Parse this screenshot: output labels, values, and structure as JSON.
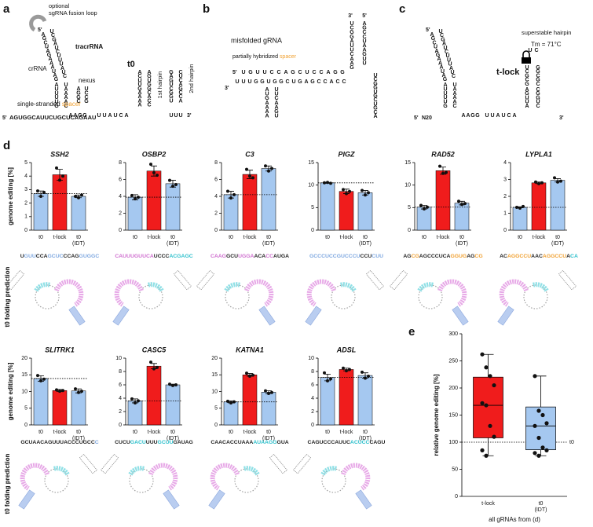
{
  "figure": {
    "a": {
      "letter": "a",
      "fusion_1": "optional",
      "fusion_2": "sgRNA fusion loop",
      "five": "5'",
      "tracr": "tracrRNA",
      "crrna": "crRNA",
      "t0": "t0",
      "nexus": "nexus",
      "hairpin1": "1st hairpin",
      "hairpin2": "2nd hairpin",
      "ss": "single-stranded ",
      "spacer": "spacer",
      "spacer_five": "5'",
      "spacer_seq": "AGUGGCAUUCUGCUCAGAAU",
      "three": "3'",
      "diag_l": "AGCUAGAAAUAG",
      "diag_r": "UCGAUCUUUAUC",
      "stem_l": "AUUUUG",
      "stem_r": "UAAAAC",
      "nexus_l": "AGGC",
      "nexus_r": "UCCG",
      "nexus_b": "AAGG",
      "linker": "UUAUCA",
      "hp1_l": "ACUUGAAAA",
      "hp1_r": "AGUGGCACC",
      "hp2_l": "GAGUCGGU",
      "hp2_r": "CUCAGCCA",
      "tail": "UUU"
    },
    "b": {
      "letter": "b",
      "title": "misfolded gRNA",
      "partial": "partially hybridized ",
      "spacer": "spacer",
      "three_top": "3'",
      "five_top": "5'",
      "stem_l": "UCGGAUUCAAG",
      "stem_r": "AGCCUAAGUU",
      "five": "5'",
      "top_strand": "UGUUCCAGCUCCAGG",
      "bottom_strand": "UUUGGUGGCUGAGCCACC",
      "three": "3'",
      "hp_pink_l": "AUGAAAA",
      "hp_pink_r": "UUCAAGU",
      "blue_hp": "UCGGUGCUGCA"
    },
    "c": {
      "letter": "c",
      "five_top": "5'",
      "diag_l": "AGCUAGAAAUAG",
      "diag_r": "UCGAUCUUUAUC",
      "stem_l": "AUUUUG",
      "stem_r": "UAAAAC",
      "label": "superstable hairpin",
      "tm": "Tm = 71°C",
      "name": "t-lock",
      "red_top": "UC",
      "red_l": "UCGCG",
      "red_r": "GGCGC",
      "pink_l": "AGUUA",
      "blue_r": "CGGUC",
      "nexus_b": "AAGG",
      "linker": "UUAUCA",
      "n20": "N20",
      "five": "5'",
      "three": "3'"
    },
    "d": {
      "letter": "d",
      "fold_row1": "t0 folding prediction",
      "fold_row2": "t0 folding prediction"
    },
    "e": {
      "letter": "e"
    }
  },
  "chart_data": [
    {
      "type": "bar",
      "title": "SSH2",
      "ylabel": "genome editing [%]",
      "categories": [
        "t0",
        "t-lock",
        "t0 (IDT)"
      ],
      "values": [
        2.7,
        4.1,
        2.5
      ],
      "errors": [
        0.2,
        0.4,
        0.1
      ],
      "points": [
        [
          2.9,
          2.5,
          2.8
        ],
        [
          4.6,
          3.7,
          4.0
        ],
        [
          2.5,
          2.4,
          2.6
        ]
      ],
      "colors": [
        "#a5c8f0",
        "#f01c1c",
        "#a5c8f0"
      ],
      "ylim": [
        0,
        5
      ],
      "yticks": [
        0,
        1,
        2,
        3,
        4,
        5
      ],
      "sequence": [
        {
          "text": "U",
          "color": "#222222"
        },
        {
          "text": "GUU",
          "color": "#7fa8e0"
        },
        {
          "text": "CCA",
          "color": "#222222"
        },
        {
          "text": "GCUC",
          "color": "#7fa8e0"
        },
        {
          "text": "CCAG",
          "color": "#222222"
        },
        {
          "text": "GUGGC",
          "color": "#7fa8e0"
        }
      ]
    },
    {
      "type": "bar",
      "title": "OSBP2",
      "categories": [
        "t0",
        "t-lock",
        "t0 (IDT)"
      ],
      "values": [
        3.9,
        7.0,
        5.5
      ],
      "errors": [
        0.3,
        0.6,
        0.4
      ],
      "points": [
        [
          4.1,
          3.7,
          3.9
        ],
        [
          7.8,
          6.8,
          6.5
        ],
        [
          5.9,
          5.2,
          5.4
        ]
      ],
      "colors": [
        "#a5c8f0",
        "#f01c1c",
        "#a5c8f0"
      ],
      "ylim": [
        0,
        8
      ],
      "yticks": [
        0,
        2,
        4,
        6,
        8
      ],
      "sequence": [
        {
          "text": "CAUUUGUUCA",
          "color": "#cf6fcf"
        },
        {
          "text": "UCCC",
          "color": "#222222"
        },
        {
          "text": "ACGAGC",
          "color": "#2ec0cc"
        }
      ]
    },
    {
      "type": "bar",
      "title": "C3",
      "categories": [
        "t0",
        "t-lock",
        "t0 (IDT)"
      ],
      "values": [
        4.2,
        6.6,
        7.3
      ],
      "errors": [
        0.4,
        0.5,
        0.3
      ],
      "points": [
        [
          4.6,
          3.8,
          4.2
        ],
        [
          7.2,
          6.4,
          6.2
        ],
        [
          7.6,
          7.0,
          7.3
        ]
      ],
      "colors": [
        "#a5c8f0",
        "#f01c1c",
        "#a5c8f0"
      ],
      "ylim": [
        0,
        8
      ],
      "yticks": [
        0,
        2,
        4,
        6,
        8
      ],
      "sequence": [
        {
          "text": "CAAG",
          "color": "#cf6fcf"
        },
        {
          "text": "GCU",
          "color": "#222222"
        },
        {
          "text": "UGGA",
          "color": "#cf6fcf"
        },
        {
          "text": "ACA",
          "color": "#222222"
        },
        {
          "text": "CC",
          "color": "#cf6fcf"
        },
        {
          "text": "AUGA",
          "color": "#222222"
        }
      ]
    },
    {
      "type": "bar",
      "title": "PIGZ",
      "categories": [
        "t0",
        "t-lock",
        "t0 (IDT)"
      ],
      "values": [
        10.5,
        8.6,
        8.3
      ],
      "errors": [
        0.1,
        0.5,
        0.5
      ],
      "points": [
        [
          10.5,
          10.6,
          10.4
        ],
        [
          9.0,
          8.1,
          8.6
        ],
        [
          8.8,
          7.8,
          8.3
        ]
      ],
      "colors": [
        "#a5c8f0",
        "#f01c1c",
        "#a5c8f0"
      ],
      "ylim": [
        0,
        15
      ],
      "yticks": [
        0,
        5,
        10,
        15
      ],
      "sequence": [
        {
          "text": "GCCCUCCGUCCCU",
          "color": "#7fa8e0"
        },
        {
          "text": "CCU",
          "color": "#222222"
        },
        {
          "text": "CUU",
          "color": "#7fa8e0"
        }
      ]
    },
    {
      "type": "bar",
      "title": "RAD52",
      "categories": [
        "t0",
        "t-lock",
        "t0 (IDT)"
      ],
      "values": [
        5.1,
        13.2,
        6.0
      ],
      "errors": [
        0.4,
        0.8,
        0.4
      ],
      "points": [
        [
          5.5,
          4.7,
          5.1
        ],
        [
          14.2,
          12.6,
          12.8
        ],
        [
          6.4,
          5.7,
          5.9
        ]
      ],
      "colors": [
        "#a5c8f0",
        "#f01c1c",
        "#a5c8f0"
      ],
      "ylim": [
        0,
        15
      ],
      "yticks": [
        0,
        5,
        10,
        15
      ],
      "sequence": [
        {
          "text": "AG",
          "color": "#222222"
        },
        {
          "text": "CG",
          "color": "#f0a030"
        },
        {
          "text": "AGCCCUCA",
          "color": "#222222"
        },
        {
          "text": "GGUG",
          "color": "#f0a030"
        },
        {
          "text": "AG",
          "color": "#222222"
        },
        {
          "text": "CG",
          "color": "#f0a030"
        }
      ]
    },
    {
      "type": "bar",
      "title": "LYPLA1",
      "categories": [
        "t0",
        "t-lock",
        "t0 (IDT)"
      ],
      "values": [
        1.35,
        2.8,
        2.95
      ],
      "errors": [
        0.03,
        0.05,
        0.1
      ],
      "points": [
        [
          1.35,
          1.3,
          1.4
        ],
        [
          2.85,
          2.75,
          2.8
        ],
        [
          3.1,
          2.85,
          2.9
        ]
      ],
      "colors": [
        "#a5c8f0",
        "#f01c1c",
        "#a5c8f0"
      ],
      "ylim": [
        0,
        4
      ],
      "yticks": [
        0,
        1,
        2,
        3,
        4
      ],
      "sequence": [
        {
          "text": "AC",
          "color": "#222222"
        },
        {
          "text": "AGGCCU",
          "color": "#f0a030"
        },
        {
          "text": "AAC",
          "color": "#222222"
        },
        {
          "text": "AGGCCU",
          "color": "#f0a030"
        },
        {
          "text": "A",
          "color": "#222222"
        },
        {
          "text": "CA",
          "color": "#2ec0cc"
        }
      ]
    },
    {
      "type": "bar",
      "title": "SLITRK1",
      "ylabel": "genome editing [%]",
      "categories": [
        "t0",
        "t-lock",
        "t0 (IDT)"
      ],
      "values": [
        13.9,
        10.3,
        10.2
      ],
      "errors": [
        0.8,
        0.3,
        0.6
      ],
      "points": [
        [
          14.8,
          13.2,
          13.7
        ],
        [
          10.5,
          10.1,
          10.3
        ],
        [
          10.8,
          9.7,
          10.1
        ]
      ],
      "colors": [
        "#a5c8f0",
        "#f01c1c",
        "#a5c8f0"
      ],
      "ylim": [
        0,
        20
      ],
      "yticks": [
        0,
        5,
        10,
        15,
        20
      ],
      "sequence": [
        {
          "text": "GCUAACAGUUUACCCUGCC",
          "color": "#222222"
        },
        {
          "text": "C",
          "color": "#7fa8e0"
        }
      ]
    },
    {
      "type": "bar",
      "title": "CASC5",
      "categories": [
        "t0",
        "t-lock",
        "t0 (IDT)"
      ],
      "values": [
        3.6,
        8.8,
        6.0
      ],
      "errors": [
        0.3,
        0.4,
        0.1
      ],
      "points": [
        [
          3.9,
          3.3,
          3.6
        ],
        [
          9.4,
          8.4,
          8.6
        ],
        [
          6.1,
          5.9,
          6.0
        ]
      ],
      "colors": [
        "#a5c8f0",
        "#f01c1c",
        "#a5c8f0"
      ],
      "ylim": [
        0,
        10
      ],
      "yticks": [
        0,
        2,
        4,
        6,
        8,
        10
      ],
      "sequence": [
        {
          "text": "CUCU",
          "color": "#222222"
        },
        {
          "text": "GACU",
          "color": "#2ec0cc"
        },
        {
          "text": "UUU",
          "color": "#222222"
        },
        {
          "text": "GCUU",
          "color": "#2ec0cc"
        },
        {
          "text": "GAUAG",
          "color": "#222222"
        }
      ]
    },
    {
      "type": "bar",
      "title": "KATNA1",
      "categories": [
        "t0",
        "t-lock",
        "t0 (IDT)"
      ],
      "values": [
        6.9,
        15.0,
        9.8
      ],
      "errors": [
        0.3,
        0.4,
        0.4
      ],
      "points": [
        [
          7.1,
          6.6,
          6.9
        ],
        [
          15.5,
          14.6,
          14.9
        ],
        [
          10.2,
          9.4,
          9.7
        ]
      ],
      "colors": [
        "#a5c8f0",
        "#f01c1c",
        "#a5c8f0"
      ],
      "ylim": [
        0,
        20
      ],
      "yticks": [
        0,
        5,
        10,
        15,
        20
      ],
      "sequence": [
        {
          "text": "CAACACCUAAA",
          "color": "#222222"
        },
        {
          "text": "AUAAGG",
          "color": "#2ec0cc"
        },
        {
          "text": "GUA",
          "color": "#222222"
        }
      ]
    },
    {
      "type": "bar",
      "title": "ADSL",
      "categories": [
        "t0",
        "t-lock",
        "t0 (IDT)"
      ],
      "values": [
        7.1,
        8.3,
        7.4
      ],
      "errors": [
        0.5,
        0.2,
        0.4
      ],
      "points": [
        [
          7.8,
          6.6,
          6.9
        ],
        [
          8.5,
          8.1,
          8.3
        ],
        [
          7.9,
          7.0,
          7.3
        ]
      ],
      "colors": [
        "#a5c8f0",
        "#f01c1c",
        "#a5c8f0"
      ],
      "ylim": [
        0,
        10
      ],
      "yticks": [
        0,
        2,
        4,
        6,
        8,
        10
      ],
      "sequence": [
        {
          "text": "CAGUCCCAUUC",
          "color": "#222222"
        },
        {
          "text": "ACUCC",
          "color": "#2ec0cc"
        },
        {
          "text": "CAGU",
          "color": "#222222"
        }
      ]
    },
    {
      "type": "box",
      "ylabel": "relative genome editing [%]",
      "xlabel": "all gRNAs from (d)",
      "categories": [
        "t-lock",
        "t0 (IDT)"
      ],
      "boxes": [
        {
          "min": 75,
          "q1": 108,
          "median": 168,
          "q3": 220,
          "max": 262,
          "color": "#f01c1c"
        },
        {
          "min": 75,
          "q1": 86,
          "median": 130,
          "q3": 165,
          "max": 222,
          "color": "#a5c8f0"
        }
      ],
      "points": [
        [
          262,
          238,
          222,
          205,
          172,
          168,
          130,
          110,
          85,
          75
        ],
        [
          222,
          158,
          150,
          135,
          130,
          108,
          90,
          85,
          80,
          75
        ]
      ],
      "reference": {
        "value": 100,
        "label": "t0"
      },
      "ylim": [
        0,
        300
      ],
      "yticks": [
        0,
        50,
        100,
        150,
        200,
        250,
        300
      ]
    }
  ]
}
